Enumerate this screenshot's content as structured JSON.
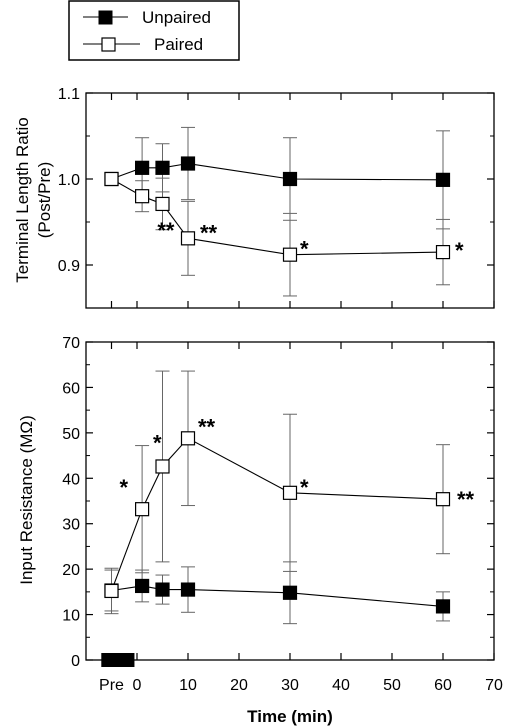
{
  "legend": {
    "entries": [
      {
        "label": "Unpaired",
        "marker": "filled-square"
      },
      {
        "label": "Paired",
        "marker": "open-square"
      }
    ]
  },
  "colors": {
    "line": "#000000",
    "errorbar": "#666666",
    "open_fill": "#ffffff",
    "filled": "#000000"
  },
  "chart_data": [
    {
      "type": "line",
      "panel": "top",
      "ylabel": [
        "Terminal Length Ratio",
        "(Post/Pre)"
      ],
      "ylim": [
        0.85,
        1.1
      ],
      "yticks": [
        0.9,
        1.0,
        1.1
      ],
      "yticklabels": [
        "0.9",
        "1.0",
        "1.1"
      ],
      "xlim": [
        -10,
        70
      ],
      "xlabel": "",
      "series": [
        {
          "name": "Unpaired",
          "marker": "filled-square",
          "x": [
            "Pre",
            1,
            5,
            10,
            30,
            60
          ],
          "y": [
            1.0,
            1.013,
            1.013,
            1.018,
            1.0,
            0.999
          ],
          "err": [
            0,
            0.035,
            0.028,
            0.042,
            0.048,
            0.057
          ],
          "annotations": [
            "",
            "",
            "",
            "",
            "",
            ""
          ]
        },
        {
          "name": "Paired",
          "marker": "open-square",
          "x": [
            "Pre",
            1,
            5,
            10,
            30,
            60
          ],
          "y": [
            1.0,
            0.98,
            0.971,
            0.931,
            0.912,
            0.915
          ],
          "err": [
            0,
            0.018,
            0.03,
            0.043,
            0.048,
            0.038
          ],
          "annotations": [
            "",
            "",
            "**",
            "**",
            "*",
            "*"
          ]
        }
      ]
    },
    {
      "type": "line",
      "panel": "bottom",
      "ylabel": [
        "Input Resistance (MΩ)"
      ],
      "ylim": [
        0,
        70
      ],
      "yticks": [
        0,
        10,
        20,
        30,
        40,
        50,
        60,
        70
      ],
      "yticklabels": [
        "0",
        "10",
        "20",
        "30",
        "40",
        "50",
        "60",
        "70"
      ],
      "xlim": [
        -10,
        70
      ],
      "xticks": [
        -5,
        0,
        10,
        20,
        30,
        40,
        50,
        60,
        70
      ],
      "xticklabels": [
        "Pre",
        "0",
        "10",
        "20",
        "30",
        "40",
        "50",
        "60",
        "70"
      ],
      "xlabel": "Time (min)",
      "stimulus_bar": [
        -7,
        -0.5
      ],
      "series": [
        {
          "name": "Unpaired",
          "marker": "filled-square",
          "x": [
            "Pre",
            1,
            5,
            10,
            30,
            60
          ],
          "y": [
            15.3,
            16.3,
            15.5,
            15.5,
            14.8,
            11.8
          ],
          "err": [
            4.5,
            3.5,
            3.2,
            5.0,
            6.8,
            3.2
          ],
          "annotations": [
            "",
            "",
            "",
            "",
            "",
            ""
          ]
        },
        {
          "name": "Paired",
          "marker": "open-square",
          "x": [
            "Pre",
            1,
            5,
            10,
            30,
            60
          ],
          "y": [
            15.2,
            33.2,
            42.6,
            48.8,
            36.8,
            35.4
          ],
          "err": [
            5.0,
            14.0,
            21.0,
            14.8,
            17.3,
            12.0
          ],
          "annotations": [
            "",
            "*",
            "*",
            "**",
            "*",
            "**"
          ]
        }
      ]
    }
  ]
}
